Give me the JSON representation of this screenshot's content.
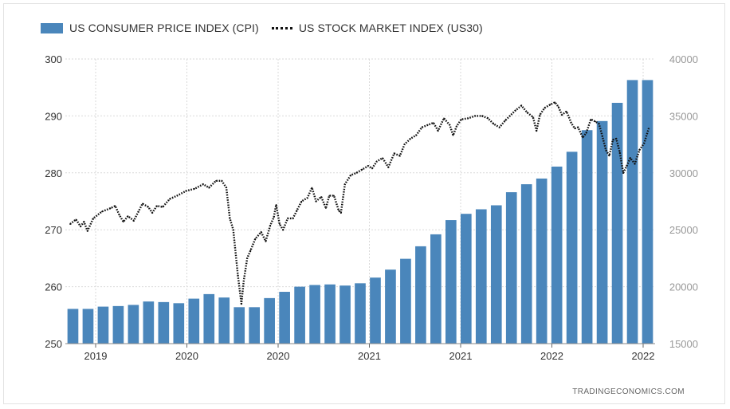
{
  "chart_data": {
    "type": "bar+line",
    "title": "",
    "series": [
      {
        "name": "US CONSUMER PRICE INDEX (CPI)",
        "type": "bar",
        "axis": "left",
        "color": "#4a86bb",
        "values": [
          256.1,
          256.1,
          256.5,
          256.6,
          256.8,
          257.4,
          257.3,
          257.1,
          257.9,
          258.7,
          258.1,
          256.4,
          256.4,
          258.0,
          259.1,
          260.0,
          260.3,
          260.4,
          260.2,
          260.6,
          261.6,
          263.0,
          264.9,
          267.1,
          269.2,
          271.7,
          272.8,
          273.6,
          274.3,
          276.6,
          278.0,
          279.0,
          281.1,
          283.7,
          287.5,
          289.1,
          292.3,
          296.3,
          296.3
        ]
      },
      {
        "name": "US STOCK MARKET INDEX (US30)",
        "type": "line",
        "axis": "right",
        "color": "#111111",
        "style": "dotted",
        "points": [
          [
            0.0,
            25500
          ],
          [
            0.01,
            25900
          ],
          [
            0.018,
            25300
          ],
          [
            0.024,
            25700
          ],
          [
            0.03,
            24900
          ],
          [
            0.04,
            26000
          ],
          [
            0.055,
            26600
          ],
          [
            0.07,
            26900
          ],
          [
            0.078,
            27100
          ],
          [
            0.085,
            26300
          ],
          [
            0.092,
            25700
          ],
          [
            0.1,
            26200
          ],
          [
            0.11,
            25800
          ],
          [
            0.118,
            26600
          ],
          [
            0.125,
            27300
          ],
          [
            0.135,
            27000
          ],
          [
            0.142,
            26500
          ],
          [
            0.15,
            27100
          ],
          [
            0.16,
            27000
          ],
          [
            0.172,
            27700
          ],
          [
            0.185,
            28000
          ],
          [
            0.2,
            28400
          ],
          [
            0.215,
            28600
          ],
          [
            0.23,
            29000
          ],
          [
            0.24,
            28700
          ],
          [
            0.252,
            29300
          ],
          [
            0.262,
            29300
          ],
          [
            0.27,
            28700
          ],
          [
            0.276,
            26000
          ],
          [
            0.282,
            25000
          ],
          [
            0.29,
            21000
          ],
          [
            0.296,
            18500
          ],
          [
            0.3,
            20500
          ],
          [
            0.306,
            22500
          ],
          [
            0.312,
            23200
          ],
          [
            0.32,
            24200
          ],
          [
            0.33,
            24800
          ],
          [
            0.338,
            24000
          ],
          [
            0.346,
            25400
          ],
          [
            0.352,
            26100
          ],
          [
            0.356,
            27200
          ],
          [
            0.362,
            25500
          ],
          [
            0.368,
            25000
          ],
          [
            0.376,
            26000
          ],
          [
            0.385,
            26000
          ],
          [
            0.392,
            26700
          ],
          [
            0.4,
            27500
          ],
          [
            0.41,
            27800
          ],
          [
            0.418,
            28700
          ],
          [
            0.425,
            27500
          ],
          [
            0.434,
            27900
          ],
          [
            0.442,
            26900
          ],
          [
            0.448,
            28000
          ],
          [
            0.456,
            28000
          ],
          [
            0.464,
            26700
          ],
          [
            0.468,
            26500
          ],
          [
            0.475,
            29000
          ],
          [
            0.485,
            29800
          ],
          [
            0.495,
            30000
          ],
          [
            0.505,
            30300
          ],
          [
            0.515,
            30600
          ],
          [
            0.522,
            30400
          ],
          [
            0.53,
            31000
          ],
          [
            0.54,
            31300
          ],
          [
            0.55,
            30500
          ],
          [
            0.56,
            31700
          ],
          [
            0.57,
            31500
          ],
          [
            0.578,
            32500
          ],
          [
            0.588,
            33000
          ],
          [
            0.598,
            33300
          ],
          [
            0.608,
            34000
          ],
          [
            0.618,
            34200
          ],
          [
            0.628,
            34400
          ],
          [
            0.636,
            33700
          ],
          [
            0.646,
            34800
          ],
          [
            0.656,
            34200
          ],
          [
            0.662,
            33300
          ],
          [
            0.668,
            34100
          ],
          [
            0.676,
            34700
          ],
          [
            0.688,
            34800
          ],
          [
            0.7,
            35000
          ],
          [
            0.712,
            35000
          ],
          [
            0.722,
            34800
          ],
          [
            0.732,
            34300
          ],
          [
            0.742,
            34000
          ],
          [
            0.752,
            34600
          ],
          [
            0.76,
            35000
          ],
          [
            0.77,
            35500
          ],
          [
            0.78,
            35900
          ],
          [
            0.79,
            35300
          ],
          [
            0.8,
            34900
          ],
          [
            0.806,
            33700
          ],
          [
            0.812,
            35100
          ],
          [
            0.82,
            35700
          ],
          [
            0.83,
            36000
          ],
          [
            0.838,
            36200
          ],
          [
            0.844,
            35800
          ],
          [
            0.85,
            35100
          ],
          [
            0.858,
            35400
          ],
          [
            0.866,
            34400
          ],
          [
            0.872,
            33900
          ],
          [
            0.878,
            34000
          ],
          [
            0.886,
            33100
          ],
          [
            0.892,
            33500
          ],
          [
            0.9,
            34700
          ],
          [
            0.908,
            34500
          ],
          [
            0.914,
            34300
          ],
          [
            0.92,
            33200
          ],
          [
            0.926,
            32000
          ],
          [
            0.932,
            31500
          ],
          [
            0.938,
            32900
          ],
          [
            0.944,
            33000
          ],
          [
            0.95,
            31800
          ],
          [
            0.956,
            30000
          ],
          [
            0.962,
            30600
          ],
          [
            0.968,
            31300
          ],
          [
            0.976,
            30800
          ],
          [
            0.984,
            32000
          ],
          [
            0.992,
            32600
          ],
          [
            1.0,
            33900
          ]
        ]
      }
    ],
    "y_left": {
      "ylim": [
        250,
        300
      ],
      "ticks": [
        250,
        260,
        270,
        280,
        290,
        300
      ]
    },
    "y_right": {
      "ylim": [
        15000,
        40000
      ],
      "ticks": [
        15000,
        20000,
        25000,
        30000,
        35000,
        40000
      ]
    },
    "x_ticks": [
      "2019",
      "2020",
      "2020",
      "2021",
      "2021",
      "2022",
      "2022"
    ],
    "grid": true,
    "legend": "top-left"
  },
  "credit": "TRADINGECONOMICS.COM"
}
